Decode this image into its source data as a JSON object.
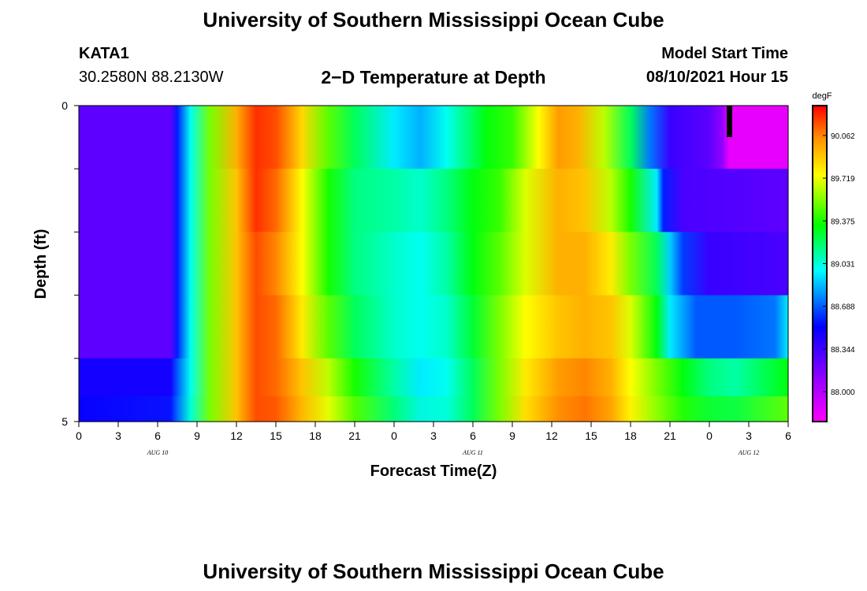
{
  "header": {
    "top_title": "University of Southern Mississippi Ocean Cube",
    "bottom_title": "University of Southern Mississippi Ocean Cube",
    "station": "KATA1",
    "location": "30.2580N  88.2130W",
    "plot_title": "2−D Temperature at Depth",
    "model_start_label": "Model Start Time",
    "model_start_value": "08/10/2021 Hour 15"
  },
  "colors": {
    "magenta": "#ff00ff",
    "purple": "#a000ff",
    "blue": "#0000ff",
    "cyan": "#00ffff",
    "green": "#00ff00",
    "yellow": "#ffff00",
    "orange": "#ff8c00",
    "red": "#ff0000",
    "marker": "#000000"
  },
  "chart_data": {
    "type": "heatmap",
    "xlabel": "Forecast Time(Z)",
    "ylabel": "Depth (ft)",
    "x_tick_labels": [
      "0",
      "3",
      "6",
      "9",
      "12",
      "15",
      "18",
      "21",
      "0",
      "3",
      "6",
      "9",
      "12",
      "15",
      "18",
      "21",
      "0",
      "3",
      "6"
    ],
    "date_labels": [
      {
        "text": "AUG 10",
        "x_hours": 6
      },
      {
        "text": "AUG 11",
        "x_hours": 30
      },
      {
        "text": "AUG 12",
        "x_hours": 51
      }
    ],
    "y_tick_labels": [
      "0",
      "5"
    ],
    "ylim": [
      0,
      5
    ],
    "x_hours_range": [
      0,
      54
    ],
    "depth_bins": 5,
    "colorbar": {
      "unit": "degF",
      "labels": [
        "90.062",
        "89.719",
        "89.375",
        "89.031",
        "88.688",
        "88.344",
        "88.000"
      ],
      "min": 87.83,
      "max": 90.23
    },
    "marker_hours": 49.5,
    "rows": [
      {
        "depth": 0.5,
        "points": [
          [
            0,
            88.3
          ],
          [
            7,
            88.3
          ],
          [
            7.5,
            88.6
          ],
          [
            8.5,
            89.0
          ],
          [
            10,
            89.5
          ],
          [
            12,
            89.9
          ],
          [
            13.5,
            90.15
          ],
          [
            15,
            90.1
          ],
          [
            17,
            89.8
          ],
          [
            19,
            89.45
          ],
          [
            21,
            89.2
          ],
          [
            24,
            88.95
          ],
          [
            26,
            88.85
          ],
          [
            28,
            89.0
          ],
          [
            30,
            89.2
          ],
          [
            31,
            89.3
          ],
          [
            33,
            89.4
          ],
          [
            35,
            89.7
          ],
          [
            36.5,
            89.95
          ],
          [
            38,
            89.9
          ],
          [
            40,
            89.6
          ],
          [
            42,
            89.2
          ],
          [
            43.5,
            88.75
          ],
          [
            45,
            88.4
          ],
          [
            48,
            88.3
          ],
          [
            49,
            88.15
          ],
          [
            49.5,
            87.9
          ],
          [
            54,
            87.9
          ]
        ]
      },
      {
        "depth": 1.5,
        "points": [
          [
            0,
            88.3
          ],
          [
            7,
            88.3
          ],
          [
            7.5,
            88.6
          ],
          [
            8.5,
            89.0
          ],
          [
            10,
            89.5
          ],
          [
            12,
            89.85
          ],
          [
            13.5,
            90.15
          ],
          [
            15,
            90.05
          ],
          [
            17,
            89.7
          ],
          [
            19,
            89.35
          ],
          [
            21,
            89.15
          ],
          [
            24,
            89.1
          ],
          [
            26,
            89.05
          ],
          [
            28,
            89.15
          ],
          [
            30,
            89.3
          ],
          [
            32,
            89.4
          ],
          [
            34,
            89.65
          ],
          [
            36.5,
            89.9
          ],
          [
            38.5,
            89.85
          ],
          [
            40.5,
            89.6
          ],
          [
            42,
            89.35
          ],
          [
            44,
            88.95
          ],
          [
            44.5,
            88.6
          ],
          [
            46,
            88.35
          ],
          [
            54,
            88.3
          ]
        ]
      },
      {
        "depth": 2.5,
        "points": [
          [
            0,
            88.3
          ],
          [
            7,
            88.3
          ],
          [
            7.5,
            88.6
          ],
          [
            8.5,
            89.0
          ],
          [
            10,
            89.5
          ],
          [
            12,
            89.85
          ],
          [
            13.5,
            90.1
          ],
          [
            15,
            90.0
          ],
          [
            17,
            89.7
          ],
          [
            19,
            89.35
          ],
          [
            21,
            89.15
          ],
          [
            24,
            89.05
          ],
          [
            26,
            89.0
          ],
          [
            28,
            89.1
          ],
          [
            30,
            89.3
          ],
          [
            32,
            89.45
          ],
          [
            34,
            89.65
          ],
          [
            36.5,
            89.9
          ],
          [
            38.5,
            89.9
          ],
          [
            40.5,
            89.75
          ],
          [
            42,
            89.5
          ],
          [
            44,
            89.2
          ],
          [
            45,
            88.9
          ],
          [
            46,
            88.65
          ],
          [
            48,
            88.4
          ],
          [
            54,
            88.35
          ]
        ]
      },
      {
        "depth": 3.5,
        "points": [
          [
            0,
            88.3
          ],
          [
            7,
            88.3
          ],
          [
            7.5,
            88.6
          ],
          [
            8.5,
            89.0
          ],
          [
            10,
            89.5
          ],
          [
            12,
            89.85
          ],
          [
            13.5,
            90.1
          ],
          [
            15,
            90.05
          ],
          [
            17,
            89.75
          ],
          [
            19,
            89.45
          ],
          [
            21,
            89.2
          ],
          [
            24,
            89.05
          ],
          [
            26,
            89.0
          ],
          [
            28,
            89.05
          ],
          [
            30,
            89.25
          ],
          [
            32,
            89.5
          ],
          [
            34,
            89.7
          ],
          [
            36.5,
            89.85
          ],
          [
            38.5,
            89.9
          ],
          [
            40.5,
            89.85
          ],
          [
            42,
            89.65
          ],
          [
            44,
            89.3
          ],
          [
            45,
            88.95
          ],
          [
            47,
            88.7
          ],
          [
            50,
            88.7
          ],
          [
            53,
            88.75
          ],
          [
            54,
            88.95
          ]
        ]
      },
      {
        "depth": 4.5,
        "points": [
          [
            0,
            88.5
          ],
          [
            7,
            88.5
          ],
          [
            7.5,
            88.7
          ],
          [
            8.5,
            89.0
          ],
          [
            10,
            89.5
          ],
          [
            12,
            89.85
          ],
          [
            13.5,
            90.1
          ],
          [
            15,
            90.05
          ],
          [
            17,
            89.85
          ],
          [
            19,
            89.6
          ],
          [
            21,
            89.35
          ],
          [
            24,
            89.1
          ],
          [
            26,
            88.95
          ],
          [
            28,
            89.0
          ],
          [
            30,
            89.2
          ],
          [
            32,
            89.5
          ],
          [
            34,
            89.75
          ],
          [
            36.5,
            89.95
          ],
          [
            38.5,
            90.0
          ],
          [
            40.5,
            89.9
          ],
          [
            42,
            89.7
          ],
          [
            44,
            89.5
          ],
          [
            46,
            89.3
          ],
          [
            48,
            89.15
          ],
          [
            50,
            89.1
          ],
          [
            52,
            89.2
          ],
          [
            54,
            89.3
          ]
        ]
      },
      {
        "depth": 5.0,
        "points": [
          [
            0,
            88.55
          ],
          [
            7,
            88.6
          ],
          [
            7.5,
            88.75
          ],
          [
            8.5,
            89.05
          ],
          [
            10,
            89.5
          ],
          [
            12,
            89.85
          ],
          [
            13.5,
            90.1
          ],
          [
            15,
            90.1
          ],
          [
            17,
            89.9
          ],
          [
            19,
            89.7
          ],
          [
            21,
            89.5
          ],
          [
            24,
            89.2
          ],
          [
            26,
            89.05
          ],
          [
            28,
            89.05
          ],
          [
            30,
            89.2
          ],
          [
            32,
            89.5
          ],
          [
            34,
            89.8
          ],
          [
            36.5,
            90.0
          ],
          [
            38.5,
            90.05
          ],
          [
            40.5,
            89.95
          ],
          [
            42,
            89.75
          ],
          [
            44,
            89.55
          ],
          [
            46,
            89.4
          ],
          [
            48,
            89.35
          ],
          [
            50,
            89.35
          ],
          [
            52,
            89.45
          ],
          [
            54,
            89.55
          ]
        ]
      }
    ]
  }
}
